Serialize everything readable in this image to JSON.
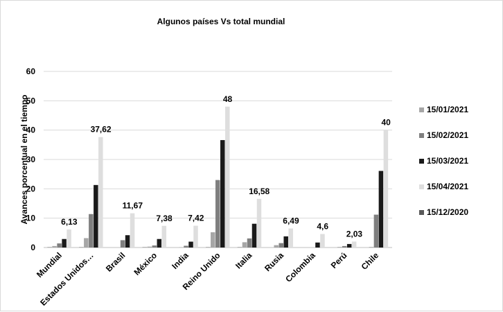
{
  "chart_data": {
    "type": "bar",
    "title": "Algunos países Vs total mundial",
    "xlabel": "",
    "ylabel": "Avances porcentual en el tiempo",
    "ylim": [
      0,
      60
    ],
    "yticks": [
      "0",
      "10",
      "20",
      "30",
      "40",
      "50",
      "60"
    ],
    "grid": true,
    "legend_position": "right",
    "categories": [
      "Mundial",
      "Estados Unidos…",
      "Brasil",
      "México",
      "India",
      "Reino Unido",
      "Italia",
      "Rusia",
      "Colombia",
      "Perú",
      "Chile"
    ],
    "series": [
      {
        "name": "15/12/2020",
        "color": "#595959",
        "values": [
          0.1,
          0.1,
          0,
          0.1,
          0,
          0.1,
          0.1,
          0,
          0,
          0,
          0
        ]
      },
      {
        "name": "15/01/2021",
        "color": "#a6a6a6",
        "values": [
          0.5,
          3.2,
          0,
          0.3,
          0.1,
          5.2,
          1.8,
          0.8,
          0,
          0.2,
          0.2
        ]
      },
      {
        "name": "15/02/2021",
        "color": "#7f7f7f",
        "values": [
          1.4,
          11.4,
          2.5,
          0.7,
          0.6,
          23,
          3.1,
          1.5,
          0,
          0.5,
          11.2
        ]
      },
      {
        "name": "15/03/2021",
        "color": "#1a1a1a",
        "values": [
          2.9,
          21.3,
          4.2,
          2.9,
          2.0,
          36.6,
          8.1,
          3.8,
          1.7,
          1.2,
          26.1
        ]
      },
      {
        "name": "15/04/2021",
        "color": "#dedede",
        "values": [
          6.13,
          37.62,
          11.67,
          7.38,
          7.42,
          48,
          16.58,
          6.49,
          4.6,
          2.03,
          40
        ]
      }
    ],
    "data_labels": [
      "6,13",
      "37,62",
      "11,67",
      "7,38",
      "7,42",
      "48",
      "16,58",
      "6,49",
      "4,6",
      "2,03",
      "40"
    ],
    "legend_order": [
      "15/01/2021",
      "15/02/2021",
      "15/03/2021",
      "15/04/2021",
      "15/12/2020"
    ]
  }
}
